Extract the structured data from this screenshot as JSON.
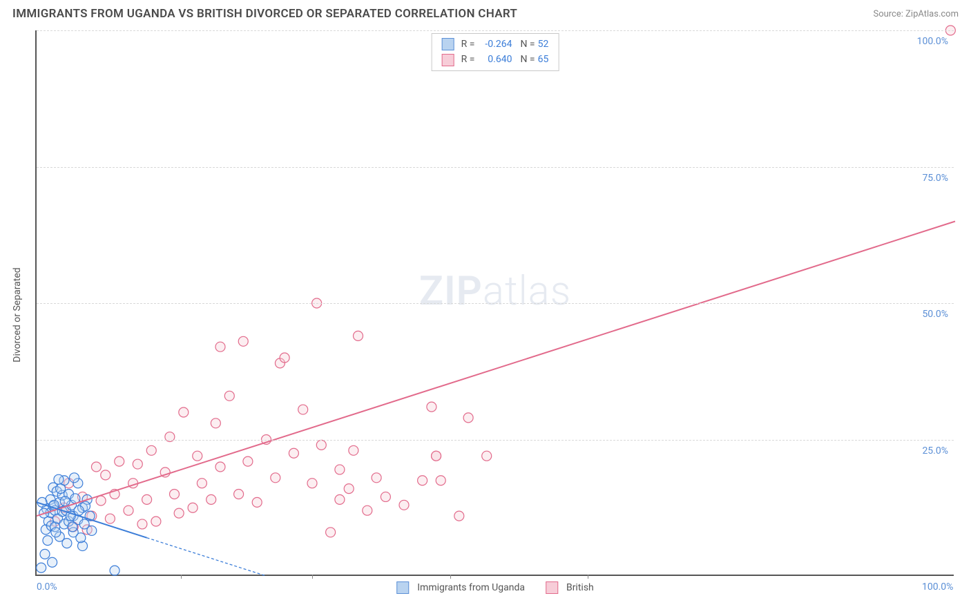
{
  "header": {
    "title": "IMMIGRANTS FROM UGANDA VS BRITISH DIVORCED OR SEPARATED CORRELATION CHART",
    "source_label": "Source: ",
    "source_value": "ZipAtlas.com"
  },
  "watermark": {
    "zip": "ZIP",
    "atlas": "atlas"
  },
  "axes": {
    "y_label": "Divorced or Separated",
    "xlim": [
      0,
      100
    ],
    "ylim": [
      0,
      100
    ],
    "x_ticks": [
      0,
      15.7,
      30,
      45,
      60,
      100
    ],
    "x_tick_labels": [
      "0.0%",
      "",
      "",
      "",
      "",
      "100.0%"
    ],
    "y_ticks": [
      25,
      50,
      75,
      100
    ],
    "y_tick_labels": [
      "25.0%",
      "50.0%",
      "75.0%",
      "100.0%"
    ],
    "grid_color": "#d8d8d8",
    "axis_color": "#555555"
  },
  "legend_top": {
    "series": [
      {
        "r_label": "R =",
        "r_value": "-0.264",
        "n_label": "N =",
        "n_value": "52",
        "fill": "#b9d3f0",
        "stroke": "#5b8fd6"
      },
      {
        "r_label": "R =",
        "r_value": "0.640",
        "n_label": "N =",
        "n_value": "65",
        "fill": "#f7cdd8",
        "stroke": "#e26a8b"
      }
    ]
  },
  "legend_bottom": {
    "items": [
      {
        "label": "Immigrants from Uganda",
        "fill": "#b9d3f0",
        "stroke": "#5b8fd6"
      },
      {
        "label": "British",
        "fill": "#f7cdd8",
        "stroke": "#e26a8b"
      }
    ]
  },
  "chart": {
    "type": "scatter",
    "background_color": "#ffffff",
    "marker_radius": 7,
    "marker_fill_opacity": 0.35,
    "series_a": {
      "name": "Immigrants from Uganda",
      "color_stroke": "#3b7dd8",
      "color_fill": "#b9d3f0",
      "points": [
        [
          0.5,
          1.5
        ],
        [
          1.0,
          8.5
        ],
        [
          1.1,
          12.3
        ],
        [
          1.3,
          10.0
        ],
        [
          1.5,
          14.0
        ],
        [
          1.5,
          11.6
        ],
        [
          1.6,
          9.2
        ],
        [
          1.8,
          12.8
        ],
        [
          1.8,
          16.2
        ],
        [
          2.0,
          9.0
        ],
        [
          2.0,
          12.0
        ],
        [
          2.2,
          15.5
        ],
        [
          2.3,
          10.5
        ],
        [
          2.5,
          13.5
        ],
        [
          2.5,
          7.2
        ],
        [
          2.8,
          11.8
        ],
        [
          2.8,
          14.8
        ],
        [
          3.0,
          9.5
        ],
        [
          3.0,
          17.5
        ],
        [
          3.2,
          12.0
        ],
        [
          3.5,
          10.0
        ],
        [
          3.5,
          15.0
        ],
        [
          3.8,
          13.0
        ],
        [
          4.0,
          8.0
        ],
        [
          4.0,
          11.0
        ],
        [
          4.2,
          14.2
        ],
        [
          4.5,
          10.3
        ],
        [
          4.5,
          17.0
        ],
        [
          5.0,
          12.5
        ],
        [
          5.0,
          5.5
        ],
        [
          5.2,
          9.5
        ],
        [
          5.5,
          14.0
        ],
        [
          5.8,
          11.0
        ],
        [
          6.0,
          8.3
        ],
        [
          0.6,
          13.5
        ],
        [
          0.8,
          11.5
        ],
        [
          1.2,
          6.5
        ],
        [
          1.9,
          13.0
        ],
        [
          2.1,
          8.0
        ],
        [
          2.6,
          16.0
        ],
        [
          3.3,
          6.0
        ],
        [
          3.7,
          11.0
        ],
        [
          4.1,
          18.0
        ],
        [
          4.8,
          7.0
        ],
        [
          5.3,
          12.8
        ],
        [
          0.9,
          4.0
        ],
        [
          2.4,
          17.7
        ],
        [
          3.1,
          13.7
        ],
        [
          3.9,
          9.0
        ],
        [
          4.6,
          12.0
        ],
        [
          1.7,
          2.5
        ],
        [
          8.5,
          1.0
        ]
      ],
      "trend": {
        "solid": {
          "x1": 0,
          "y1": 13.5,
          "x2": 12,
          "y2": 7.0
        },
        "dashed": {
          "x1": 12,
          "y1": 7.0,
          "x2": 25,
          "y2": 0
        },
        "stroke_width": 2,
        "dash": "4,3"
      }
    },
    "series_b": {
      "name": "British",
      "color_stroke": "#e26a8b",
      "color_fill": "#f7cdd8",
      "points": [
        [
          2,
          10.0
        ],
        [
          3,
          12.5
        ],
        [
          4,
          9.0
        ],
        [
          5,
          14.5
        ],
        [
          6,
          11.0
        ],
        [
          7,
          13.8
        ],
        [
          7.5,
          18.5
        ],
        [
          8,
          10.5
        ],
        [
          8.5,
          15.0
        ],
        [
          9,
          21.0
        ],
        [
          10,
          12.0
        ],
        [
          10.5,
          17.0
        ],
        [
          11,
          20.5
        ],
        [
          12,
          14.0
        ],
        [
          12.5,
          23.0
        ],
        [
          13,
          10.0
        ],
        [
          14,
          19.0
        ],
        [
          14.5,
          25.5
        ],
        [
          15,
          15.0
        ],
        [
          16,
          30.0
        ],
        [
          17,
          12.5
        ],
        [
          17.5,
          22.0
        ],
        [
          18,
          17.0
        ],
        [
          19,
          14.0
        ],
        [
          19.5,
          28.0
        ],
        [
          20,
          20.0
        ],
        [
          21,
          33.0
        ],
        [
          22,
          15.0
        ],
        [
          22.5,
          43.0
        ],
        [
          23,
          21.0
        ],
        [
          24,
          13.5
        ],
        [
          25,
          25.0
        ],
        [
          26,
          18.0
        ],
        [
          26.5,
          39.0
        ],
        [
          27,
          40.0
        ],
        [
          28,
          22.5
        ],
        [
          29,
          30.5
        ],
        [
          30,
          17.0
        ],
        [
          30.5,
          50.0
        ],
        [
          31,
          24.0
        ],
        [
          32,
          8.0
        ],
        [
          33,
          19.5
        ],
        [
          33,
          14.0
        ],
        [
          34,
          16.0
        ],
        [
          34.5,
          23.0
        ],
        [
          35,
          44.0
        ],
        [
          36,
          12.0
        ],
        [
          37,
          18.0
        ],
        [
          38,
          14.5
        ],
        [
          40,
          13.0
        ],
        [
          42,
          17.5
        ],
        [
          43,
          31.0
        ],
        [
          43.5,
          22.0
        ],
        [
          43.5,
          22.0
        ],
        [
          44,
          17.5
        ],
        [
          46,
          11.0
        ],
        [
          47,
          29.0
        ],
        [
          49,
          22.0
        ],
        [
          20,
          42.0
        ],
        [
          99.5,
          100.0
        ],
        [
          5.5,
          8.5
        ],
        [
          11.5,
          9.5
        ],
        [
          15.5,
          11.5
        ],
        [
          3.5,
          17.0
        ],
        [
          6.5,
          20.0
        ]
      ],
      "trend": {
        "line": {
          "x1": 0,
          "y1": 11.0,
          "x2": 100,
          "y2": 65.0
        },
        "stroke_width": 2
      }
    }
  }
}
